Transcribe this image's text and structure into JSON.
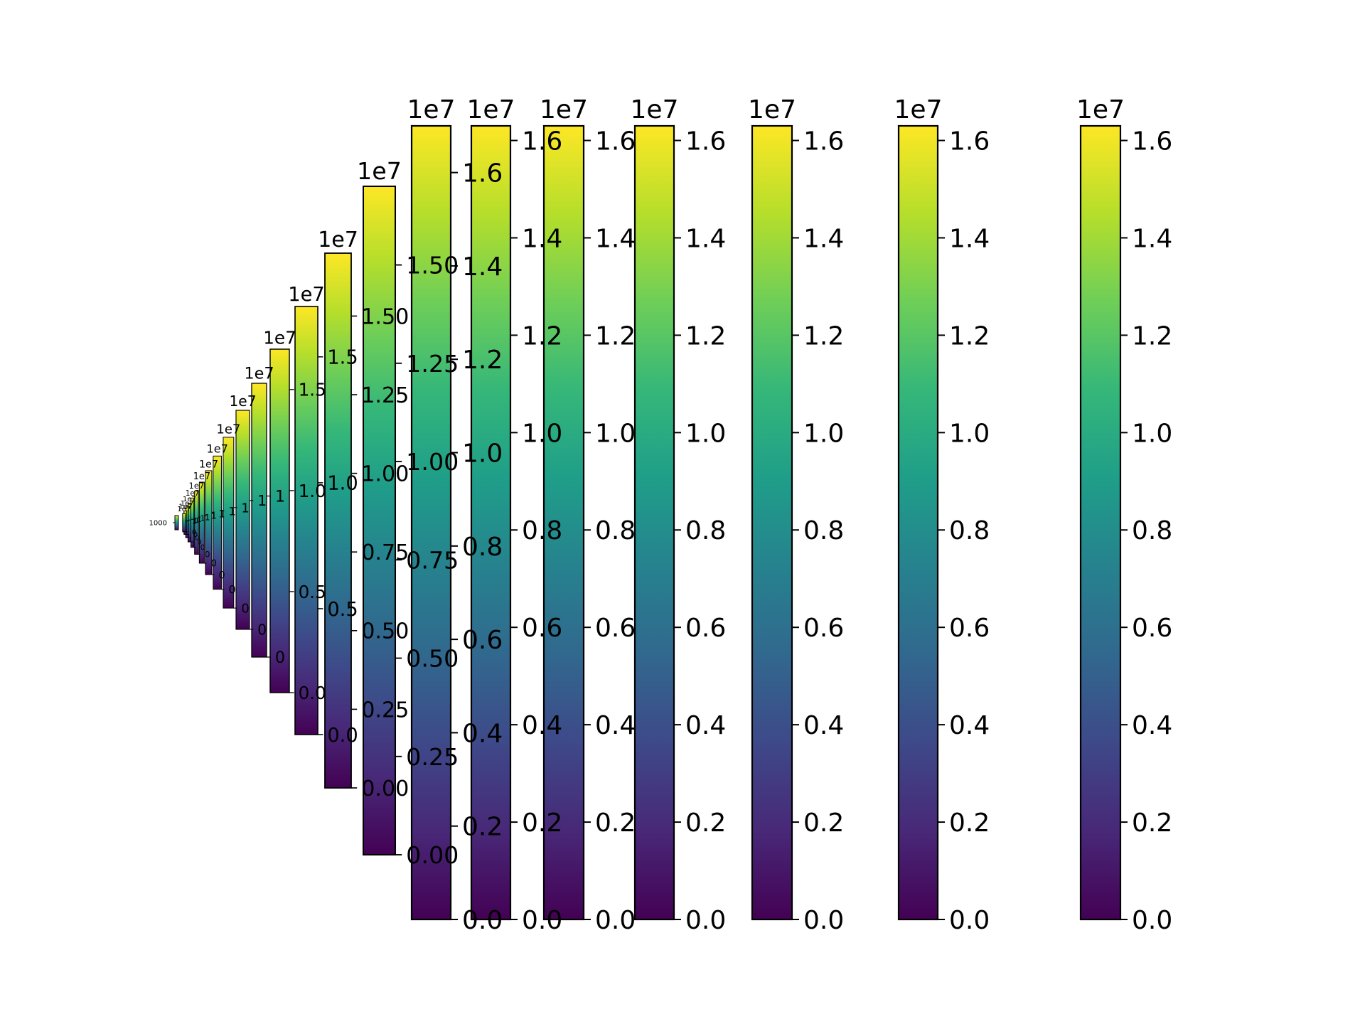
{
  "chart_data": {
    "type": "heatmap",
    "colormap": "viridis",
    "colors": {
      "outline": "#000000",
      "viridis_stops": [
        "#440154",
        "#482878",
        "#3e4989",
        "#31688e",
        "#26828e",
        "#1f9e89",
        "#35b779",
        "#6ece58",
        "#b5de2b",
        "#fde725"
      ]
    },
    "colorbars": [
      {
        "vmin": 0,
        "vmax": 16300000,
        "offset_label": "1e7",
        "ticks": [
          0,
          0.2,
          0.4,
          0.6,
          0.8,
          1.0,
          1.2,
          1.4,
          1.6
        ],
        "tick_labels": [
          "0.0",
          "0.2",
          "0.4",
          "0.6",
          "0.8",
          "1.0",
          "1.2",
          "1.4",
          "1.6"
        ]
      },
      {
        "vmin": 0,
        "vmax": 16300000,
        "offset_label": "1e7",
        "ticks": [
          0,
          0.2,
          0.4,
          0.6,
          0.8,
          1.0,
          1.2,
          1.4,
          1.6
        ],
        "tick_labels": [
          "0.0",
          "0.2",
          "0.4",
          "0.6",
          "0.8",
          "1.0",
          "1.2",
          "1.4",
          "1.6"
        ]
      },
      {
        "vmin": 0,
        "vmax": 16300000,
        "offset_label": "1e7",
        "ticks": [
          0,
          0.2,
          0.4,
          0.6,
          0.8,
          1.0,
          1.2,
          1.4,
          1.6
        ],
        "tick_labels": [
          "0.0",
          "0.2",
          "0.4",
          "0.6",
          "0.8",
          "1.0",
          "1.2",
          "1.4",
          "1.6"
        ]
      },
      {
        "vmin": 0,
        "vmax": 16300000,
        "offset_label": "1e7",
        "ticks": [
          0,
          0.2,
          0.4,
          0.6,
          0.8,
          1.0,
          1.2,
          1.4,
          1.6
        ],
        "tick_labels": [
          "0.0",
          "0.2",
          "0.4",
          "0.6",
          "0.8",
          "1.0",
          "1.2",
          "1.4",
          "1.6"
        ]
      },
      {
        "vmin": 0,
        "vmax": 16300000,
        "offset_label": "1e7",
        "ticks": [
          0,
          0.2,
          0.4,
          0.6,
          0.8,
          1.0,
          1.2,
          1.4,
          1.6
        ],
        "tick_labels": [
          "0.0",
          "0.2",
          "0.4",
          "0.6",
          "0.8",
          "1.0",
          "1.2",
          "1.4",
          "1.6"
        ]
      },
      {
        "vmin": 0,
        "vmax": 16300000,
        "offset_label": "1e7",
        "ticks": [
          0,
          0.2,
          0.4,
          0.6,
          0.8,
          1.0,
          1.2,
          1.4,
          1.6
        ],
        "tick_labels": [
          "0.0",
          "0.2",
          "0.4",
          "0.6",
          "0.8",
          "1.0",
          "1.2",
          "1.4",
          "1.6"
        ]
      },
      {
        "vmin": 0,
        "vmax": 17000000,
        "offset_label": "1e7",
        "ticks": [
          0,
          0.2,
          0.4,
          0.6,
          0.8,
          1.0,
          1.2,
          1.4,
          1.6
        ],
        "tick_labels": [
          "0.0",
          "0.2",
          "0.4",
          "0.6",
          "0.8",
          "1.0",
          "1.2",
          "1.4",
          "1.6"
        ]
      },
      {
        "vmin": 0,
        "vmax": 17000000,
        "offset_label": "1e7",
        "ticks": [
          0,
          0.25,
          0.5,
          0.75,
          1.0,
          1.25,
          1.5
        ],
        "tick_labels": [
          "0.00",
          "0.25",
          "0.50",
          "0.75",
          "1.00",
          "1.25",
          "1.50"
        ]
      },
      {
        "vmin": 0,
        "vmax": 17000000,
        "offset_label": "1e7",
        "ticks": [
          0,
          0.25,
          0.5,
          0.75,
          1.0,
          1.25,
          1.5
        ],
        "tick_labels": [
          "0.00",
          "0.25",
          "0.50",
          "0.75",
          "1.00",
          "1.25",
          "1.50"
        ]
      },
      {
        "vmin": 0,
        "vmax": 17000000,
        "offset_label": "1e7",
        "ticks": [
          0,
          0.5,
          1.0,
          1.5
        ],
        "tick_labels": [
          "0.0",
          "0.5",
          "1.0",
          "1.5"
        ]
      },
      {
        "vmin": 0,
        "vmax": 17000000,
        "offset_label": "1e7",
        "ticks": [
          0,
          0.5,
          1.0,
          1.5
        ],
        "tick_labels": [
          "0.0",
          "0.5",
          "1.0",
          "1.5"
        ]
      },
      {
        "vmin": 0,
        "vmax": 17000000,
        "offset_label": "1e7",
        "ticks": [
          0,
          1
        ],
        "tick_labels": [
          "0",
          "1"
        ]
      },
      {
        "vmin": 0,
        "vmax": 17000000,
        "offset_label": "1e7",
        "ticks": [
          0,
          1
        ],
        "tick_labels": [
          "0",
          "1"
        ]
      },
      {
        "vmin": 0,
        "vmax": 17000000,
        "offset_label": "1e7",
        "ticks": [
          0,
          1
        ],
        "tick_labels": [
          "0",
          "1"
        ]
      },
      {
        "vmin": 0,
        "vmax": 17000000,
        "offset_label": "1e7",
        "ticks": [
          0,
          1
        ],
        "tick_labels": [
          "0",
          "1"
        ]
      },
      {
        "vmin": 0,
        "vmax": 17000000,
        "offset_label": "1e7",
        "ticks": [
          0,
          1
        ],
        "tick_labels": [
          "0",
          "1"
        ]
      },
      {
        "vmin": 0,
        "vmax": 17000000,
        "offset_label": "1e7",
        "ticks": [
          0,
          1
        ],
        "tick_labels": [
          "0",
          "1"
        ]
      },
      {
        "vmin": 0,
        "vmax": 17000000,
        "offset_label": "1e7",
        "ticks": [
          0,
          1
        ],
        "tick_labels": [
          "0",
          "1"
        ]
      },
      {
        "vmin": 0,
        "vmax": 17000000,
        "offset_label": "1e7",
        "ticks": [
          0,
          1
        ],
        "tick_labels": [
          "0",
          "1"
        ]
      },
      {
        "vmin": 0,
        "vmax": 17000000,
        "offset_label": "1e7",
        "ticks": [
          0,
          1
        ],
        "tick_labels": [
          "0",
          "1"
        ]
      },
      {
        "vmin": 0,
        "vmax": 17000000,
        "offset_label": "1e7",
        "ticks": [
          0,
          1
        ],
        "tick_labels": [
          "0",
          "1"
        ]
      },
      {
        "vmin": 0,
        "vmax": 17000000,
        "offset_label": "1e7",
        "ticks": [
          0,
          1
        ],
        "tick_labels": [
          "0",
          "1"
        ]
      },
      {
        "vmin": 0,
        "vmax": 17000000,
        "offset_label": "1e7",
        "ticks": [
          0,
          1
        ],
        "tick_labels": [
          "0",
          "1"
        ]
      },
      {
        "vmin": 0,
        "vmax": 2000,
        "offset_label": "",
        "ticks": [
          1000
        ],
        "tick_labels": [
          "1000"
        ]
      }
    ]
  }
}
